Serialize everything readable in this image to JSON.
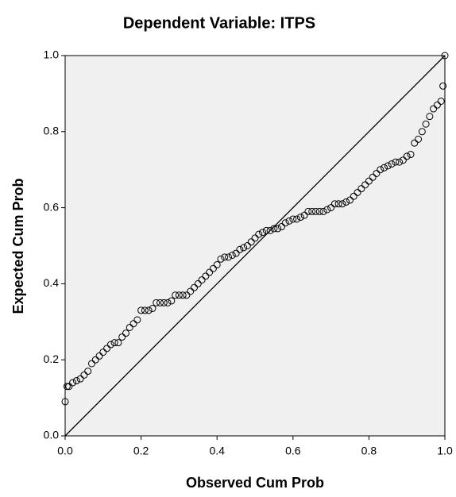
{
  "chart_data": {
    "type": "scatter",
    "title": "Dependent Variable: ITPS",
    "x_label": "Observed Cum Prob",
    "y_label": "Expected Cum Prob",
    "x": [
      0,
      0.005,
      0.01,
      0.02,
      0.03,
      0.04,
      0.05,
      0.06,
      0.07,
      0.08,
      0.09,
      0.1,
      0.11,
      0.12,
      0.13,
      0.14,
      0.15,
      0.16,
      0.17,
      0.18,
      0.19,
      0.2,
      0.21,
      0.22,
      0.23,
      0.24,
      0.25,
      0.26,
      0.27,
      0.28,
      0.29,
      0.3,
      0.31,
      0.32,
      0.33,
      0.34,
      0.35,
      0.36,
      0.37,
      0.38,
      0.39,
      0.4,
      0.41,
      0.42,
      0.43,
      0.44,
      0.45,
      0.46,
      0.47,
      0.48,
      0.49,
      0.5,
      0.51,
      0.52,
      0.53,
      0.54,
      0.55,
      0.56,
      0.57,
      0.58,
      0.59,
      0.6,
      0.61,
      0.62,
      0.63,
      0.64,
      0.65,
      0.66,
      0.67,
      0.68,
      0.69,
      0.7,
      0.71,
      0.72,
      0.73,
      0.74,
      0.75,
      0.76,
      0.77,
      0.78,
      0.79,
      0.8,
      0.81,
      0.82,
      0.83,
      0.84,
      0.85,
      0.86,
      0.87,
      0.88,
      0.89,
      0.9,
      0.91,
      0.92,
      0.93,
      0.94,
      0.95,
      0.96,
      0.97,
      0.98,
      0.99,
      0.995,
      1.0
    ],
    "values": [
      0.09,
      0.13,
      0.13,
      0.14,
      0.145,
      0.15,
      0.16,
      0.17,
      0.19,
      0.2,
      0.21,
      0.22,
      0.23,
      0.24,
      0.245,
      0.245,
      0.26,
      0.27,
      0.285,
      0.295,
      0.305,
      0.33,
      0.33,
      0.33,
      0.335,
      0.35,
      0.35,
      0.35,
      0.35,
      0.355,
      0.37,
      0.37,
      0.37,
      0.37,
      0.38,
      0.39,
      0.4,
      0.41,
      0.42,
      0.43,
      0.44,
      0.45,
      0.465,
      0.47,
      0.47,
      0.475,
      0.48,
      0.49,
      0.495,
      0.5,
      0.51,
      0.52,
      0.53,
      0.535,
      0.54,
      0.54,
      0.545,
      0.545,
      0.55,
      0.56,
      0.565,
      0.57,
      0.57,
      0.575,
      0.58,
      0.59,
      0.59,
      0.59,
      0.59,
      0.59,
      0.595,
      0.6,
      0.61,
      0.61,
      0.61,
      0.615,
      0.62,
      0.63,
      0.64,
      0.65,
      0.66,
      0.67,
      0.68,
      0.69,
      0.7,
      0.705,
      0.71,
      0.715,
      0.72,
      0.72,
      0.725,
      0.735,
      0.74,
      0.77,
      0.78,
      0.8,
      0.82,
      0.84,
      0.86,
      0.87,
      0.88,
      0.92,
      1.0
    ],
    "color": "#000000",
    "xlim": [
      0,
      1
    ],
    "ylim": [
      0,
      1
    ],
    "xticks": [
      {
        "value": 0,
        "label": "0.0"
      },
      0.2,
      0.4,
      0.6,
      0.8,
      {
        "value": 1,
        "label": "1.0"
      }
    ],
    "yticks": [
      {
        "value": 0,
        "label": "0.0"
      },
      0.2,
      0.4,
      0.6,
      0.8,
      {
        "value": 1,
        "label": "1.0"
      }
    ]
  }
}
